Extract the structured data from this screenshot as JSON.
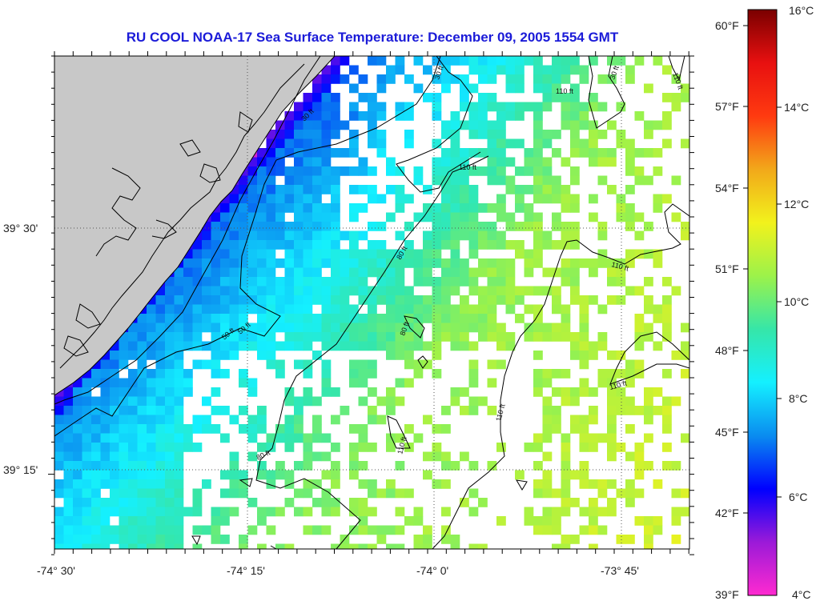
{
  "title": "RU COOL  NOAA-17  Sea Surface Temperature:  December 09, 2005 1554 GMT",
  "map": {
    "lat_labels": [
      "39° 30'",
      "39° 15'"
    ],
    "lon_labels": [
      "-74° 30'",
      "-74° 15'",
      "-74° 0'",
      "-73° 45'"
    ],
    "contours": [
      {
        "label": "30 ft"
      },
      {
        "label": "50 ft"
      },
      {
        "label": "80 ft"
      },
      {
        "label": "110 ft"
      },
      {
        "label": "30 ft"
      },
      {
        "label": "30 ft"
      },
      {
        "label": "110 ft"
      },
      {
        "label": "110 ft"
      },
      {
        "label": "110 ft"
      },
      {
        "label": "110 ft"
      },
      {
        "label": "110 ft"
      },
      {
        "label": "80 ft"
      },
      {
        "label": "80 ft"
      },
      {
        "label": "110 ft"
      },
      {
        "label": "50 ft"
      }
    ]
  },
  "colorbar": {
    "f_labels": [
      "60°F",
      "57°F",
      "54°F",
      "51°F",
      "48°F",
      "45°F",
      "42°F",
      "39°F"
    ],
    "c_labels": [
      "16°C",
      "14°C",
      "12°C",
      "10°C",
      "8°C",
      "6°C",
      "4°C"
    ],
    "stops": [
      "#ff2ad0",
      "#9b1ad8",
      "#0000ff",
      "#0a8cf0",
      "#14f0ff",
      "#36e6a8",
      "#9cf24a",
      "#f2f21c",
      "#f2a81a",
      "#ff3a10",
      "#e81010",
      "#7a0000"
    ]
  },
  "colors": {
    "land": "#c8c8c8",
    "title": "#1b1bd8",
    "cloud": "#ffffff"
  }
}
